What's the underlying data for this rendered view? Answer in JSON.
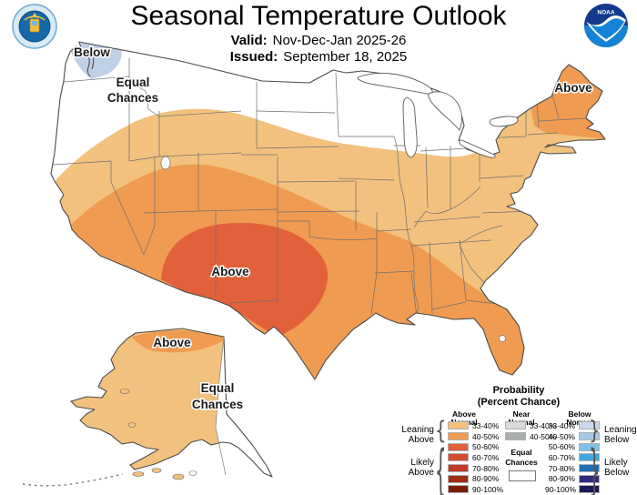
{
  "header": {
    "title": "Seasonal Temperature Outlook",
    "valid_label": "Valid:",
    "valid_value": "Nov-Dec-Jan 2025-26",
    "issued_label": "Issued:",
    "issued_value": "September 18, 2025",
    "noaa_text": "NOAA"
  },
  "map_labels": {
    "pnw_below": "Below",
    "pnw_equal_1": "Equal",
    "pnw_equal_2": "Chances",
    "southwest_above": "Above",
    "northeast_above": "Above",
    "alaska_above": "Above",
    "alaska_equal_1": "Equal",
    "alaska_equal_2": "Chances"
  },
  "map_colors": {
    "above_33_40": "#F2C17D",
    "above_40_50": "#EF9B51",
    "above_50_60": "#E2613A",
    "below_33_40": "#BFCFE6",
    "equal_chances": "#FFFFFF"
  },
  "map_regions": [
    {
      "label": "Below",
      "area": "northwest Washington",
      "category": "below-normal",
      "color": "#BFCFE6"
    },
    {
      "label": "Equal Chances",
      "area": "Pacific Northwest / northern Rockies / upper Midwest",
      "category": "equal-chances",
      "color": "#FFFFFF"
    },
    {
      "label": "Above",
      "area": "Southwest (New Mexico / west Texas core)",
      "category": "above-normal 50-60%",
      "color": "#E2613A"
    },
    {
      "label": "Above",
      "area": "New England / Maine",
      "category": "above-normal 40-50%",
      "color": "#EF9B51"
    },
    {
      "label": "Above",
      "area": "western and northern Alaska",
      "category": "above-normal",
      "color": "#F2C17D"
    },
    {
      "label": "Equal Chances",
      "area": "eastern Alaska",
      "category": "equal-chances",
      "color": "#FFFFFF"
    }
  ],
  "legend": {
    "title_1": "Probability",
    "title_2": "(Percent Chance)",
    "above": {
      "header_1": "Above",
      "header_2": "Normal",
      "rows": [
        {
          "range": "33-40%",
          "color": "#F4C17D"
        },
        {
          "range": "40-50%",
          "color": "#F09B51"
        },
        {
          "range": "50-60%",
          "color": "#E2613A"
        },
        {
          "range": "60-70%",
          "color": "#D84C2E"
        },
        {
          "range": "70-80%",
          "color": "#C43826"
        },
        {
          "range": "80-90%",
          "color": "#A32C15"
        },
        {
          "range": "90-100%",
          "color": "#7D1D06"
        }
      ]
    },
    "near": {
      "header_1": "Near",
      "header_2": "Normal",
      "rows": [
        {
          "range": "33-40%",
          "color": "#D8DBDA"
        },
        {
          "range": "40-50%",
          "color": "#A9AFAE"
        }
      ],
      "equal_1": "Equal",
      "equal_2": "Chances"
    },
    "below": {
      "header_1": "Below",
      "header_2": "Normal",
      "rows": [
        {
          "range": "33-40%",
          "color": "#CBD7EF"
        },
        {
          "range": "40-50%",
          "color": "#A5C8E9"
        },
        {
          "range": "50-60%",
          "color": "#7EC2EA"
        },
        {
          "range": "60-70%",
          "color": "#41A6E0"
        },
        {
          "range": "70-80%",
          "color": "#1D6FB5"
        },
        {
          "range": "80-90%",
          "color": "#2E2B7F"
        },
        {
          "range": "90-100%",
          "color": "#1B1A55"
        }
      ]
    },
    "brackets": {
      "leaning_above_1": "Leaning",
      "leaning_above_2": "Above",
      "likely_above_1": "Likely",
      "likely_above_2": "Above",
      "leaning_below_1": "Leaning",
      "leaning_below_2": "Below",
      "likely_below_1": "Likely",
      "likely_below_2": "Below"
    }
  }
}
